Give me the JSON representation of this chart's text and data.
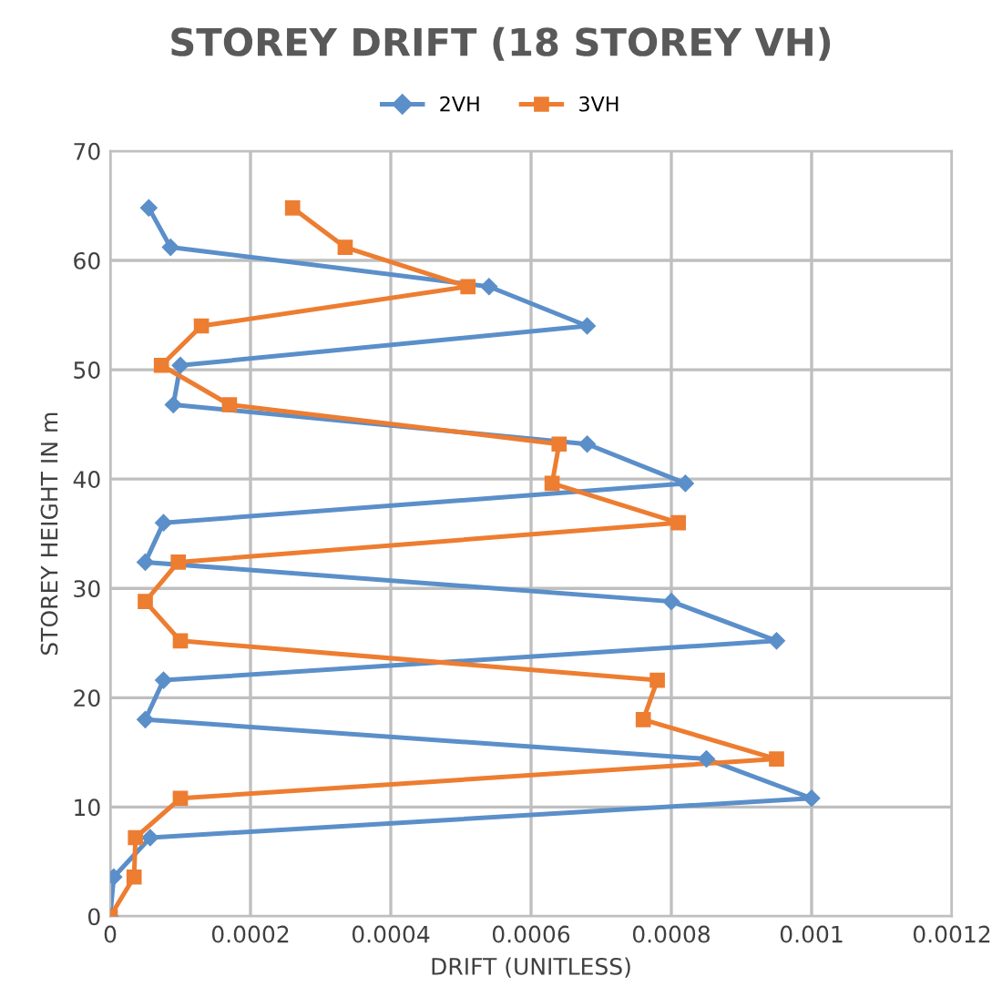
{
  "chart_data": {
    "type": "line",
    "title": "STOREY DRIFT (18 STOREY VH)",
    "xlabel": "DRIFT (UNITLESS)",
    "ylabel": "STOREY HEIGHT IN m",
    "xlim": [
      0,
      0.0012
    ],
    "xticks": [
      0,
      0.0002,
      0.0004,
      0.0006,
      0.0008,
      0.001,
      0.0012
    ],
    "ylim": [
      0,
      70
    ],
    "yticks": [
      0,
      10,
      20,
      30,
      40,
      50,
      60,
      70
    ],
    "grid": true,
    "legend": "top",
    "series": [
      {
        "name": "2VH",
        "color": "#5b8fc9",
        "marker": "diamond",
        "x": [
          0,
          5e-06,
          5.7e-05,
          0.001,
          0.00085,
          5e-05,
          7.6e-05,
          0.00095,
          0.0008,
          5e-05,
          7.6e-05,
          0.00082,
          0.00068,
          9e-05,
          0.0001,
          0.00068,
          0.00054,
          8.6e-05,
          5.5e-05
        ],
        "values": [
          0,
          3.6,
          7.2,
          10.8,
          14.4,
          18,
          21.6,
          25.2,
          28.8,
          32.4,
          36,
          39.6,
          43.2,
          46.8,
          50.4,
          54,
          57.6,
          61.2,
          64.8
        ]
      },
      {
        "name": "3VH",
        "color": "#ed7d31",
        "marker": "square",
        "x": [
          0,
          3.4e-05,
          3.6e-05,
          0.0001,
          0.00095,
          0.00076,
          0.00078,
          0.0001,
          5e-05,
          9.7e-05,
          0.00081,
          0.00063,
          0.00064,
          0.00017,
          7.3e-05,
          0.00013,
          0.00051,
          0.000335,
          0.00026
        ],
        "values": [
          0,
          3.6,
          7.2,
          10.8,
          14.4,
          18,
          21.6,
          25.2,
          28.8,
          32.4,
          36,
          39.6,
          43.2,
          46.8,
          50.4,
          54,
          57.6,
          61.2,
          64.8
        ]
      }
    ]
  }
}
